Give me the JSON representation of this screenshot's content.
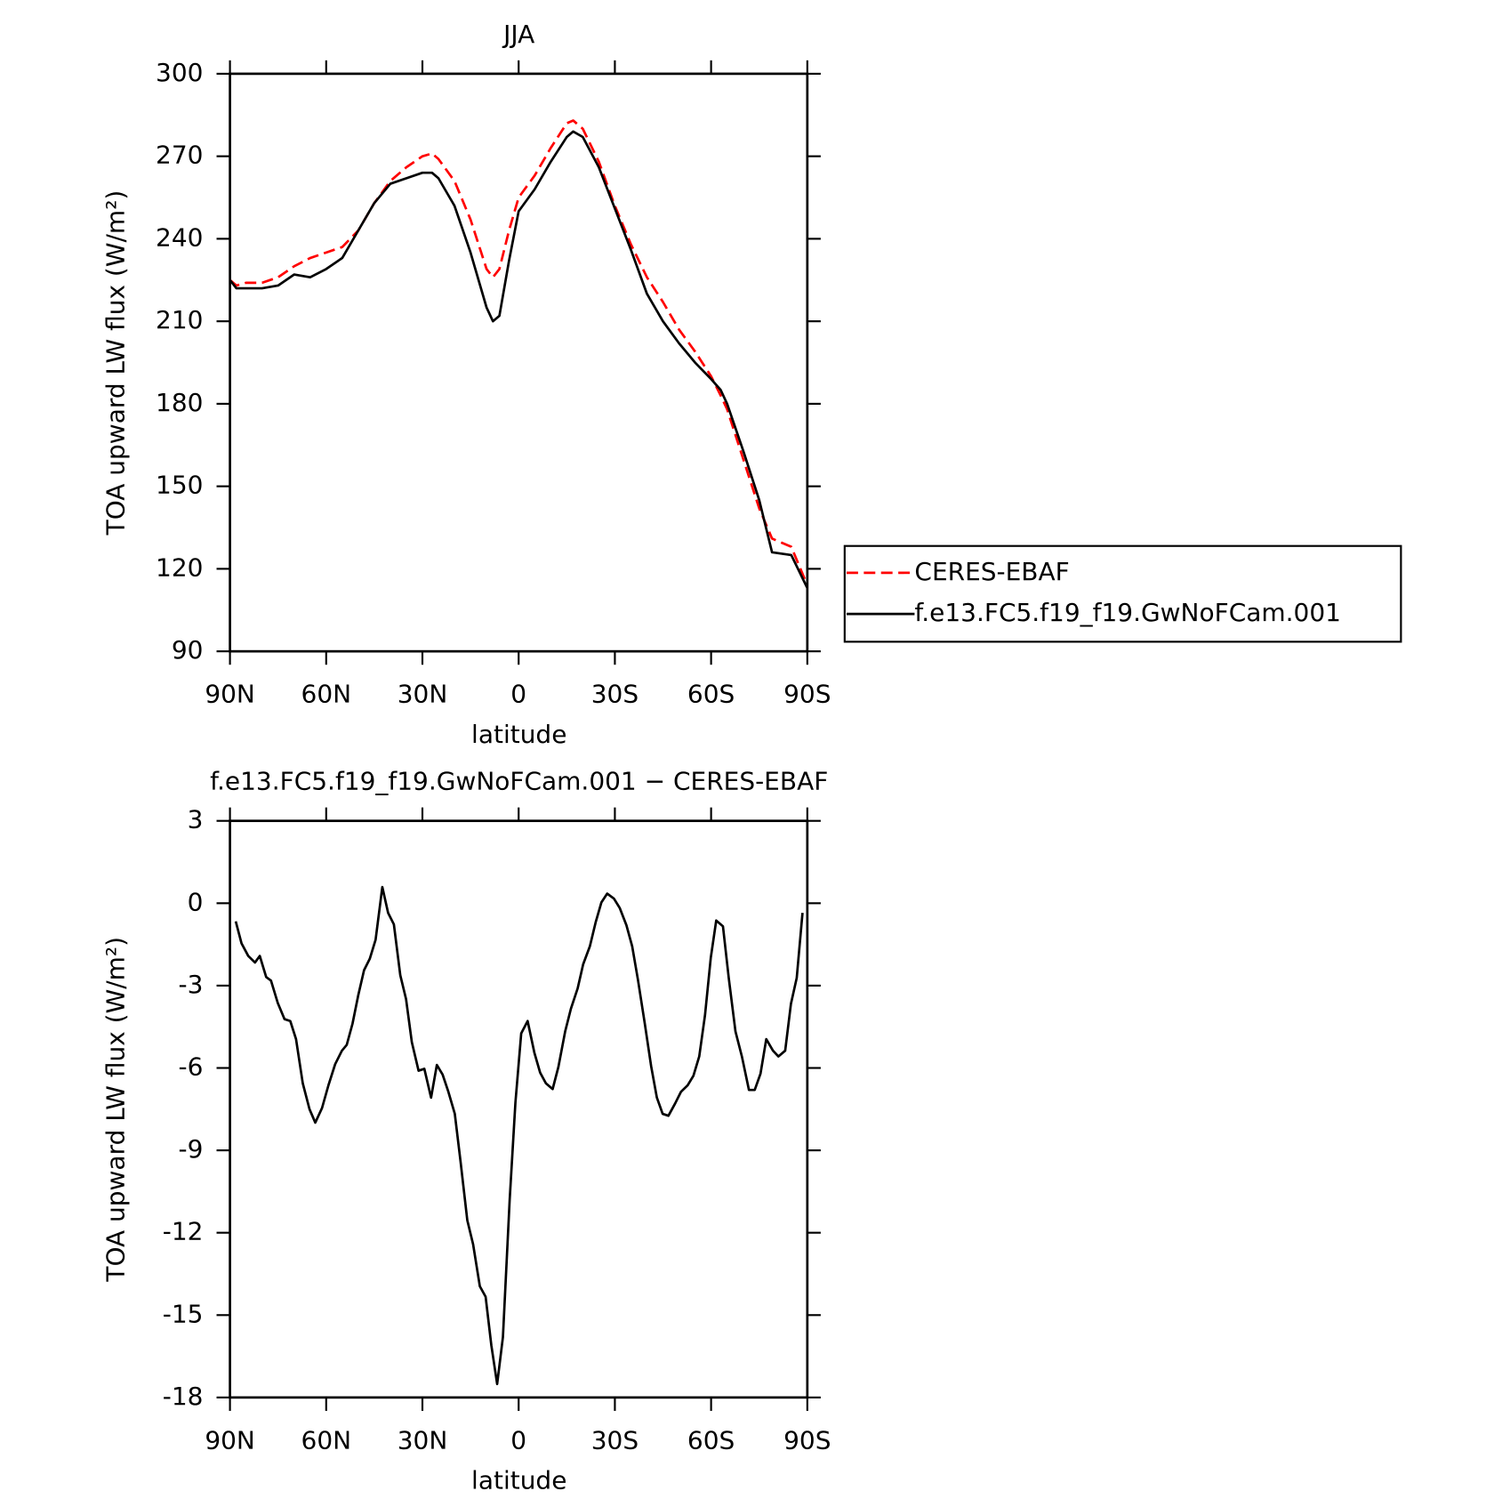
{
  "chart_data": [
    {
      "type": "line",
      "title": "JJA",
      "xlabel": "latitude",
      "ylabel": "TOA upward LW flux (W/m²)",
      "xlim": [
        90,
        -90
      ],
      "ylim": [
        90,
        300
      ],
      "xticks": [
        {
          "value": 90,
          "label": "90N"
        },
        {
          "value": 60,
          "label": "60N"
        },
        {
          "value": 30,
          "label": "30N"
        },
        0,
        {
          "value": -30,
          "label": "30S"
        },
        {
          "value": -60,
          "label": "60S"
        },
        {
          "value": -90,
          "label": "90S"
        }
      ],
      "yticks": [
        90,
        120,
        150,
        180,
        210,
        240,
        270,
        300
      ],
      "legend": "right",
      "x": [
        90,
        88,
        85,
        80,
        75,
        70,
        65,
        60,
        55,
        50,
        45,
        40,
        35,
        30,
        27,
        25,
        20,
        15,
        10,
        8,
        6,
        3,
        0,
        -5,
        -10,
        -15,
        -17,
        -20,
        -25,
        -30,
        -35,
        -40,
        -45,
        -50,
        -55,
        -60,
        -63,
        -65,
        -70,
        -75,
        -79,
        -85,
        -90
      ],
      "series": [
        {
          "name": "CERES-EBAF",
          "color": "#ff0000",
          "dashed": true,
          "values": [
            225,
            223,
            224,
            224,
            226,
            230,
            233,
            235,
            237,
            243,
            253,
            261,
            266,
            270,
            271,
            269,
            261,
            247,
            229,
            226,
            229,
            243,
            255,
            263,
            273,
            282,
            283,
            280,
            268,
            252,
            238,
            226,
            217,
            207,
            199,
            190,
            183,
            178,
            160,
            142,
            131,
            128,
            114
          ]
        },
        {
          "name": "f.e13.FC5.f19_f19.GwNoFCam.001",
          "color": "#000000",
          "dashed": false,
          "values": [
            225,
            222,
            222,
            222,
            223,
            227,
            226,
            229,
            233,
            243,
            253,
            260,
            262,
            264,
            264,
            262,
            252,
            235,
            215,
            210,
            212,
            232,
            250,
            258,
            268,
            277,
            279,
            277,
            266,
            251,
            236,
            220,
            210,
            202,
            195,
            189,
            185,
            180,
            163,
            145,
            126,
            125,
            113
          ]
        }
      ]
    },
    {
      "type": "line",
      "title": "f.e13.FC5.f19_f19.GwNoFCam.001 − CERES-EBAF",
      "xlabel": "latitude",
      "ylabel": "TOA upward LW flux (W/m²)",
      "xlim": [
        90,
        -90
      ],
      "ylim": [
        -18,
        3
      ],
      "xticks": [
        {
          "value": 90,
          "label": "90N"
        },
        {
          "value": 60,
          "label": "60N"
        },
        {
          "value": 30,
          "label": "30N"
        },
        0,
        {
          "value": -30,
          "label": "30S"
        },
        {
          "value": -60,
          "label": "60S"
        },
        {
          "value": -90,
          "label": "90S"
        }
      ],
      "yticks": [
        -18,
        -15,
        -12,
        -9,
        -6,
        -3,
        0,
        3
      ],
      "x": [
        88.2,
        86.4,
        84.3,
        82.2,
        80.7,
        78.7,
        77.2,
        75.1,
        73.0,
        71.2,
        69.4,
        67.3,
        65.2,
        63.4,
        61.3,
        59.3,
        57.2,
        55.1,
        53.6,
        51.8,
        50.0,
        48.2,
        46.4,
        44.6,
        42.5,
        40.7,
        38.9,
        36.9,
        35.1,
        33.3,
        31.2,
        29.4,
        27.3,
        25.5,
        23.7,
        21.9,
        19.9,
        18.1,
        16.0,
        14.2,
        12.1,
        10.3,
        8.5,
        6.7,
        4.9,
        2.8,
        1.0,
        -0.8,
        -2.8,
        -4.9,
        -6.7,
        -8.5,
        -10.6,
        -12.4,
        -14.5,
        -16.3,
        -18.4,
        -20.1,
        -22.2,
        -24.0,
        -25.8,
        -27.6,
        -29.7,
        -31.5,
        -33.6,
        -35.4,
        -37.2,
        -39.3,
        -41.3,
        -43.1,
        -44.9,
        -46.7,
        -48.8,
        -50.6,
        -52.7,
        -54.5,
        -56.3,
        -58.1,
        -59.9,
        -61.6,
        -63.7,
        -65.5,
        -67.6,
        -69.6,
        -71.8,
        -73.6,
        -75.4,
        -77.2,
        -79.3,
        -81.0,
        -83.1,
        -84.9,
        -86.7,
        -88.5
      ],
      "series": [
        {
          "color": "#000000",
          "dashed": false,
          "values": [
            -0.66,
            -1.46,
            -1.92,
            -2.16,
            -1.92,
            -2.69,
            -2.82,
            -3.63,
            -4.22,
            -4.29,
            -4.95,
            -6.56,
            -7.5,
            -7.99,
            -7.46,
            -6.63,
            -5.86,
            -5.37,
            -5.16,
            -4.39,
            -3.35,
            -2.44,
            -2.02,
            -1.33,
            0.59,
            -0.35,
            -0.77,
            -2.62,
            -3.49,
            -5.06,
            -6.1,
            -6.03,
            -7.08,
            -5.89,
            -6.24,
            -6.87,
            -7.67,
            -9.42,
            -11.55,
            -12.42,
            -13.95,
            -14.33,
            -16.11,
            -17.51,
            -15.8,
            -10.81,
            -7.25,
            -4.74,
            -4.29,
            -5.44,
            -6.17,
            -6.56,
            -6.77,
            -5.96,
            -4.67,
            -3.84,
            -3.1,
            -2.23,
            -1.57,
            -0.7,
            0.03,
            0.35,
            0.17,
            -0.17,
            -0.8,
            -1.57,
            -2.79,
            -4.36,
            -5.93,
            -7.08,
            -7.67,
            -7.74,
            -7.29,
            -6.87,
            -6.63,
            -6.28,
            -5.58,
            -4.08,
            -1.99,
            -0.63,
            -0.84,
            -2.72,
            -4.67,
            -5.58,
            -6.8,
            -6.8,
            -6.21,
            -4.95,
            -5.37,
            -5.58,
            -5.37,
            -3.66,
            -2.72,
            -0.35
          ]
        }
      ]
    }
  ]
}
